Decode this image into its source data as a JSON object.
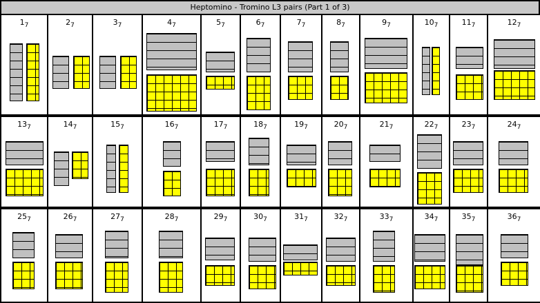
{
  "title": "Heptomino - Tromino L3 pairs (Part 1 of 3)",
  "colors": {
    "heptomino": "#c0c0c0",
    "tromino_tiling": "#ffff00",
    "header": "#c8c8c8"
  },
  "subscript": "7",
  "cells": [
    "1",
    "2",
    "3",
    "4",
    "5",
    "6",
    "7",
    "8",
    "9",
    "10",
    "11",
    "12",
    "13",
    "14",
    "15",
    "16",
    "17",
    "18",
    "19",
    "20",
    "21",
    "22",
    "23",
    "24",
    "25",
    "26",
    "27",
    "28",
    "29",
    "30",
    "31",
    "32",
    "33",
    "34",
    "35",
    "36"
  ]
}
